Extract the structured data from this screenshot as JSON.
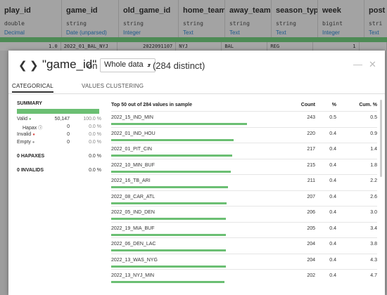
{
  "grid": {
    "columns": [
      {
        "name": "play_id",
        "type": "double",
        "meaning": "Decimal",
        "w": 88
      },
      {
        "name": "game_id",
        "type": "string",
        "meaning": "Date (unparsed)",
        "w": 81
      },
      {
        "name": "old_game_id",
        "type": "string",
        "meaning": "Integer",
        "w": 85
      },
      {
        "name": "home_team",
        "type": "string",
        "meaning": "Text",
        "w": 66
      },
      {
        "name": "away_team",
        "type": "string",
        "meaning": "Text",
        "w": 66
      },
      {
        "name": "season_type",
        "type": "string",
        "meaning": "Text",
        "w": 66
      },
      {
        "name": "week",
        "type": "bigint",
        "meaning": "Integer",
        "w": 66
      },
      {
        "name": "post",
        "type": "stri",
        "meaning": "Text",
        "w": 40
      }
    ],
    "row": [
      "1.0",
      "2022_01_BAL_NYJ",
      "2022091107",
      "NYJ",
      "BAL",
      "REG",
      "1",
      ""
    ]
  },
  "modal": {
    "prev_icon": "chevron-left-icon",
    "next_icon": "chevron-right-icon",
    "column_title": "\"game_id\"",
    "on_text": "on",
    "sample_select": "Whole data",
    "distinct_text": "- (284 distinct)",
    "minimize_icon": "minimize-icon",
    "close_icon": "close-icon",
    "tabs": [
      "CATEGORICAL",
      "VALUES CLUSTERING"
    ],
    "summary": {
      "title": "SUMMARY",
      "rows": [
        {
          "label": "Valid",
          "count": "50,147",
          "pct": "100.0 %"
        },
        {
          "label": "Hapax",
          "count": "0",
          "pct": "0.0 %"
        },
        {
          "label": "Invalid",
          "count": "0",
          "pct": "0.0 %"
        },
        {
          "label": "Empty",
          "count": "0",
          "pct": "0.0 %"
        }
      ],
      "hapaxes_label": "0 HAPAXES",
      "hapaxes_pct": "0.0 %",
      "invalids_label": "0 INVALIDS",
      "invalids_pct": "0.0 %"
    },
    "table": {
      "header": "Top 50 out of 284 values in sample",
      "col_count": "Count",
      "col_pct": "%",
      "col_cum": "Cum. %",
      "rows": [
        {
          "value": "2022_15_IND_MIN",
          "count": "243",
          "pct": "0.5",
          "cum": "0.5",
          "frac": 0.51
        },
        {
          "value": "2022_01_IND_HOU",
          "count": "220",
          "pct": "0.4",
          "cum": "0.9",
          "frac": 0.46
        },
        {
          "value": "2022_01_PIT_CIN",
          "count": "217",
          "pct": "0.4",
          "cum": "1.4",
          "frac": 0.455
        },
        {
          "value": "2022_10_MIN_BUF",
          "count": "215",
          "pct": "0.4",
          "cum": "1.8",
          "frac": 0.45
        },
        {
          "value": "2022_16_TB_ARI",
          "count": "211",
          "pct": "0.4",
          "cum": "2.2",
          "frac": 0.44
        },
        {
          "value": "2022_08_CAR_ATL",
          "count": "207",
          "pct": "0.4",
          "cum": "2.6",
          "frac": 0.435
        },
        {
          "value": "2022_05_IND_DEN",
          "count": "206",
          "pct": "0.4",
          "cum": "3.0",
          "frac": 0.43
        },
        {
          "value": "2022_19_MIA_BUF",
          "count": "205",
          "pct": "0.4",
          "cum": "3.4",
          "frac": 0.43
        },
        {
          "value": "2022_06_DEN_LAC",
          "count": "204",
          "pct": "0.4",
          "cum": "3.8",
          "frac": 0.43
        },
        {
          "value": "2022_13_WAS_NYG",
          "count": "204",
          "pct": "0.4",
          "cum": "4.3",
          "frac": 0.43
        },
        {
          "value": "2022_13_NYJ_MIN",
          "count": "202",
          "pct": "0.4",
          "cum": "4.7",
          "frac": 0.425
        }
      ]
    }
  },
  "colors": {
    "bar": "#6bbf73",
    "header_bar": "#4d8b55"
  }
}
